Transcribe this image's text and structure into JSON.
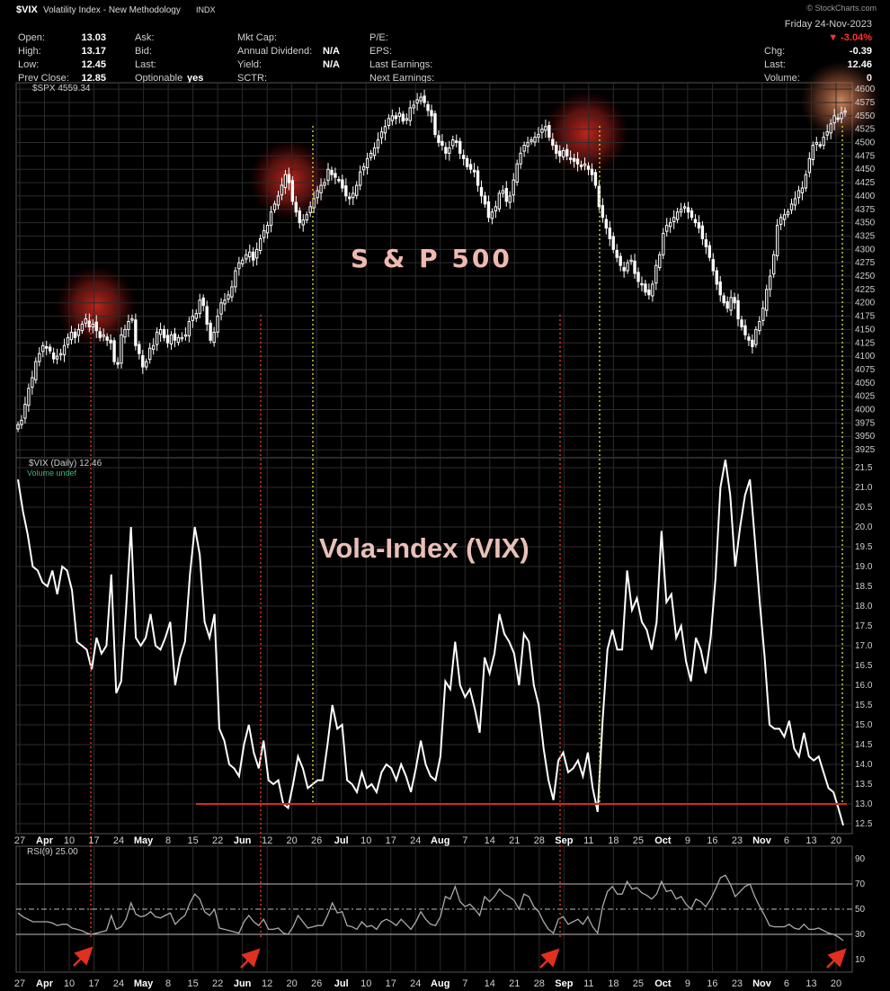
{
  "header": {
    "symbol": "$VIX",
    "name": "Volatility Index - New Methodology",
    "exchange": "INDX",
    "source": "© StockCharts.com",
    "date": "Friday 24-Nov-2023",
    "change_pct": "▼ -3.04%",
    "fields": [
      {
        "label": "Open:",
        "value": "13.03"
      },
      {
        "label": "High:",
        "value": "13.17"
      },
      {
        "label": "Low:",
        "value": "12.45"
      },
      {
        "label": "Prev Close:",
        "value": "12.85"
      },
      {
        "label": "Ask:",
        "value": ""
      },
      {
        "label": "Bid:",
        "value": ""
      },
      {
        "label": "Last:",
        "value": ""
      },
      {
        "label": "Optionable",
        "value": "yes"
      },
      {
        "label": "Mkt Cap:",
        "value": ""
      },
      {
        "label": "Annual Dividend:",
        "value": "N/A"
      },
      {
        "label": "Yield:",
        "value": "N/A"
      },
      {
        "label": "SCTR:",
        "value": ""
      },
      {
        "label": "P/E:",
        "value": ""
      },
      {
        "label": "EPS:",
        "value": ""
      },
      {
        "label": "Last Earnings:",
        "value": ""
      },
      {
        "label": "Next Earnings:",
        "value": ""
      },
      {
        "label": "Chg:",
        "value": "-0.39"
      },
      {
        "label": "Last:",
        "value": "12.46"
      },
      {
        "label": "Volume:",
        "value": "0"
      }
    ]
  },
  "chart_data": [
    {
      "type": "candlestick",
      "panel_label": "$SPX 4559.34",
      "annotation": "S & P 500",
      "ylim": [
        3910,
        4612
      ],
      "yticks": [
        3925,
        3950,
        3975,
        4000,
        4025,
        4050,
        4075,
        4100,
        4125,
        4150,
        4175,
        4200,
        4225,
        4250,
        4275,
        4300,
        4325,
        4350,
        4375,
        4400,
        4425,
        4450,
        4475,
        4500,
        4525,
        4550,
        4575,
        4600
      ],
      "closes": [
        3972,
        3980,
        4010,
        4040,
        4060,
        4090,
        4105,
        4120,
        4115,
        4110,
        4095,
        4100,
        4105,
        4120,
        4135,
        4145,
        4135,
        4150,
        4160,
        4170,
        4155,
        4160,
        4148,
        4135,
        4140,
        4130,
        4125,
        4090,
        4085,
        4140,
        4150,
        4165,
        4170,
        4120,
        4105,
        4080,
        4090,
        4115,
        4120,
        4145,
        4150,
        4135,
        4125,
        4140,
        4130,
        4135,
        4135,
        4140,
        4165,
        4175,
        4180,
        4205,
        4195,
        4160,
        4130,
        4145,
        4175,
        4200,
        4205,
        4215,
        4230,
        4260,
        4275,
        4280,
        4290,
        4295,
        4280,
        4300,
        4320,
        4335,
        4345,
        4370,
        4385,
        4400,
        4420,
        4440,
        4425,
        4390,
        4370,
        4350,
        4355,
        4365,
        4380,
        4395,
        4410,
        4420,
        4425,
        4450,
        4440,
        4435,
        4430,
        4415,
        4400,
        4395,
        4405,
        4420,
        4445,
        4455,
        4470,
        4480,
        4490,
        4505,
        4520,
        4530,
        4545,
        4550,
        4545,
        4555,
        4540,
        4545,
        4565,
        4570,
        4580,
        4585,
        4575,
        4560,
        4550,
        4515,
        4500,
        4495,
        4480,
        4490,
        4505,
        4500,
        4480,
        4470,
        4455,
        4450,
        4445,
        4420,
        4400,
        4385,
        4360,
        4370,
        4380,
        4405,
        4410,
        4390,
        4400,
        4430,
        4460,
        4480,
        4495,
        4500,
        4505,
        4510,
        4515,
        4525,
        4530,
        4510,
        4495,
        4480,
        4475,
        4485,
        4475,
        4470,
        4465,
        4460,
        4455,
        4460,
        4450,
        4440,
        4420,
        4380,
        4360,
        4340,
        4320,
        4300,
        4285,
        4270,
        4260,
        4275,
        4280,
        4255,
        4240,
        4235,
        4220,
        4215,
        4235,
        4270,
        4290,
        4330,
        4345,
        4350,
        4360,
        4370,
        4375,
        4380,
        4370,
        4360,
        4350,
        4340,
        4320,
        4305,
        4285,
        4260,
        4235,
        4215,
        4200,
        4190,
        4210,
        4200,
        4170,
        4155,
        4140,
        4130,
        4118,
        4150,
        4165,
        4190,
        4225,
        4250,
        4290,
        4345,
        4360,
        4365,
        4370,
        4385,
        4395,
        4410,
        4415,
        4440,
        4470,
        4495,
        4500,
        4495,
        4510,
        4520,
        4535,
        4550,
        4545,
        4555,
        4559
      ]
    },
    {
      "type": "line",
      "panel_label": "$VIX (Daily) 12.46",
      "sub_label": "Volume undef",
      "annotation": "Vola-Index (VIX)",
      "ylim": [
        12.25,
        21.75
      ],
      "yticks": [
        12.5,
        13.0,
        13.5,
        14.0,
        14.5,
        15.0,
        15.5,
        16.0,
        16.5,
        17.0,
        17.5,
        18.0,
        18.5,
        19.0,
        19.5,
        20.0,
        20.5,
        21.0,
        21.5
      ],
      "support_level": 13.0,
      "values": [
        21.2,
        20.4,
        19.8,
        19.0,
        18.9,
        18.6,
        18.5,
        18.9,
        18.3,
        19.0,
        18.9,
        18.4,
        17.1,
        17.0,
        16.9,
        16.4,
        17.2,
        16.8,
        17.0,
        18.8,
        15.8,
        16.1,
        17.9,
        20.0,
        17.2,
        17.0,
        17.2,
        17.8,
        17.0,
        16.9,
        17.2,
        17.6,
        16.0,
        16.7,
        17.1,
        18.8,
        20.0,
        19.3,
        17.6,
        17.2,
        17.8,
        14.9,
        14.6,
        14.0,
        13.9,
        13.7,
        14.5,
        15.0,
        14.3,
        13.9,
        14.6,
        13.6,
        13.5,
        13.6,
        13.0,
        12.9,
        13.5,
        14.2,
        13.9,
        13.4,
        13.5,
        13.6,
        13.6,
        14.5,
        15.5,
        14.9,
        15.0,
        13.6,
        13.5,
        13.3,
        13.8,
        13.4,
        13.5,
        13.3,
        13.8,
        14.0,
        13.9,
        13.6,
        14.0,
        13.7,
        13.3,
        13.9,
        14.6,
        14.0,
        13.7,
        13.6,
        14.2,
        16.1,
        15.9,
        17.1,
        16.0,
        15.7,
        15.9,
        15.4,
        14.8,
        16.7,
        16.3,
        16.8,
        17.8,
        17.3,
        17.1,
        16.8,
        16.0,
        17.3,
        17.1,
        16.0,
        15.5,
        14.4,
        13.6,
        13.1,
        14.1,
        14.3,
        13.8,
        13.9,
        14.1,
        13.7,
        14.3,
        13.4,
        12.8,
        15.1,
        16.9,
        17.4,
        16.9,
        16.9,
        18.9,
        17.9,
        18.2,
        17.6,
        17.4,
        16.9,
        17.6,
        19.9,
        18.1,
        18.3,
        17.2,
        17.5,
        16.6,
        16.1,
        17.2,
        16.9,
        16.3,
        17.2,
        18.7,
        21.0,
        21.7,
        20.8,
        19.0,
        20.0,
        20.8,
        21.2,
        19.7,
        18.1,
        16.7,
        15.0,
        14.9,
        14.9,
        14.7,
        15.1,
        14.4,
        14.2,
        14.8,
        14.2,
        14.1,
        14.2,
        13.8,
        13.4,
        13.3,
        12.9,
        12.46
      ],
      "x_labels": [
        {
          "text": "27",
          "month": false
        },
        {
          "text": "Apr",
          "month": true
        },
        {
          "text": "10",
          "month": false
        },
        {
          "text": "17",
          "month": false
        },
        {
          "text": "24",
          "month": false
        },
        {
          "text": "May",
          "month": true
        },
        {
          "text": "8",
          "month": false
        },
        {
          "text": "15",
          "month": false
        },
        {
          "text": "22",
          "month": false
        },
        {
          "text": "Jun",
          "month": true
        },
        {
          "text": "12",
          "month": false
        },
        {
          "text": "20",
          "month": false
        },
        {
          "text": "26",
          "month": false
        },
        {
          "text": "Jul",
          "month": true
        },
        {
          "text": "10",
          "month": false
        },
        {
          "text": "17",
          "month": false
        },
        {
          "text": "24",
          "month": false
        },
        {
          "text": "Aug",
          "month": true
        },
        {
          "text": "7",
          "month": false
        },
        {
          "text": "14",
          "month": false
        },
        {
          "text": "21",
          "month": false
        },
        {
          "text": "28",
          "month": false
        },
        {
          "text": "Sep",
          "month": true
        },
        {
          "text": "11",
          "month": false
        },
        {
          "text": "18",
          "month": false
        },
        {
          "text": "25",
          "month": false
        },
        {
          "text": "Oct",
          "month": true
        },
        {
          "text": "9",
          "month": false
        },
        {
          "text": "16",
          "month": false
        },
        {
          "text": "23",
          "month": false
        },
        {
          "text": "Nov",
          "month": true
        },
        {
          "text": "6",
          "month": false
        },
        {
          "text": "13",
          "month": false
        },
        {
          "text": "20",
          "month": false
        }
      ]
    },
    {
      "type": "line",
      "panel_label": "RSI(9) 25.00",
      "ylim": [
        0,
        100
      ],
      "yticks": [
        10,
        30,
        50,
        70,
        90
      ],
      "levels": [
        30,
        50,
        70
      ],
      "values": [
        47,
        44,
        42,
        40,
        40,
        40,
        40,
        39,
        37,
        38,
        38,
        35,
        34,
        33,
        31,
        30,
        31,
        32,
        33,
        45,
        34,
        36,
        42,
        55,
        46,
        44,
        45,
        48,
        44,
        43,
        45,
        47,
        38,
        42,
        45,
        55,
        62,
        58,
        48,
        45,
        50,
        35,
        34,
        33,
        32,
        31,
        40,
        45,
        40,
        37,
        42,
        34,
        34,
        35,
        31,
        30,
        36,
        45,
        40,
        35,
        36,
        37,
        37,
        45,
        55,
        47,
        48,
        37,
        36,
        34,
        40,
        36,
        37,
        34,
        40,
        42,
        40,
        37,
        42,
        38,
        34,
        40,
        48,
        42,
        38,
        37,
        44,
        60,
        58,
        68,
        56,
        52,
        54,
        50,
        45,
        60,
        56,
        60,
        66,
        62,
        60,
        57,
        50,
        62,
        60,
        52,
        48,
        40,
        34,
        31,
        42,
        44,
        38,
        40,
        42,
        38,
        44,
        36,
        31,
        52,
        64,
        68,
        62,
        62,
        72,
        66,
        67,
        63,
        61,
        58,
        62,
        72,
        64,
        65,
        58,
        60,
        54,
        50,
        58,
        56,
        52,
        58,
        66,
        75,
        77,
        70,
        60,
        64,
        68,
        70,
        60,
        52,
        45,
        37,
        36,
        36,
        36,
        38,
        35,
        34,
        38,
        34,
        34,
        35,
        33,
        31,
        30,
        28,
        25
      ],
      "x_labels": [
        {
          "text": "27",
          "month": false
        },
        {
          "text": "Apr",
          "month": true
        },
        {
          "text": "10",
          "month": false
        },
        {
          "text": "17",
          "month": false
        },
        {
          "text": "24",
          "month": false
        },
        {
          "text": "May",
          "month": true
        },
        {
          "text": "8",
          "month": false
        },
        {
          "text": "15",
          "month": false
        },
        {
          "text": "22",
          "month": false
        },
        {
          "text": "Jun",
          "month": true
        },
        {
          "text": "12",
          "month": false
        },
        {
          "text": "20",
          "month": false
        },
        {
          "text": "26",
          "month": false
        },
        {
          "text": "Jul",
          "month": true
        },
        {
          "text": "10",
          "month": false
        },
        {
          "text": "17",
          "month": false
        },
        {
          "text": "24",
          "month": false
        },
        {
          "text": "Aug",
          "month": true
        },
        {
          "text": "7",
          "month": false
        },
        {
          "text": "14",
          "month": false
        },
        {
          "text": "21",
          "month": false
        },
        {
          "text": "28",
          "month": false
        },
        {
          "text": "Sep",
          "month": true
        },
        {
          "text": "11",
          "month": false
        },
        {
          "text": "18",
          "month": false
        },
        {
          "text": "25",
          "month": false
        },
        {
          "text": "Oct",
          "month": true
        },
        {
          "text": "9",
          "month": false
        },
        {
          "text": "16",
          "month": false
        },
        {
          "text": "23",
          "month": false
        },
        {
          "text": "Nov",
          "month": true
        },
        {
          "text": "6",
          "month": false
        },
        {
          "text": "13",
          "month": false
        },
        {
          "text": "20",
          "month": false
        }
      ]
    }
  ],
  "colors": {
    "background": "#000000",
    "grid": "#2c2c2c",
    "line": "#ffffff",
    "support_line": "#d42a1f",
    "red_marker": "#d8342a",
    "yellow_marker": "#c8c82a",
    "highlight_glow": "#cc2a22",
    "down_change": "#ff3333"
  }
}
